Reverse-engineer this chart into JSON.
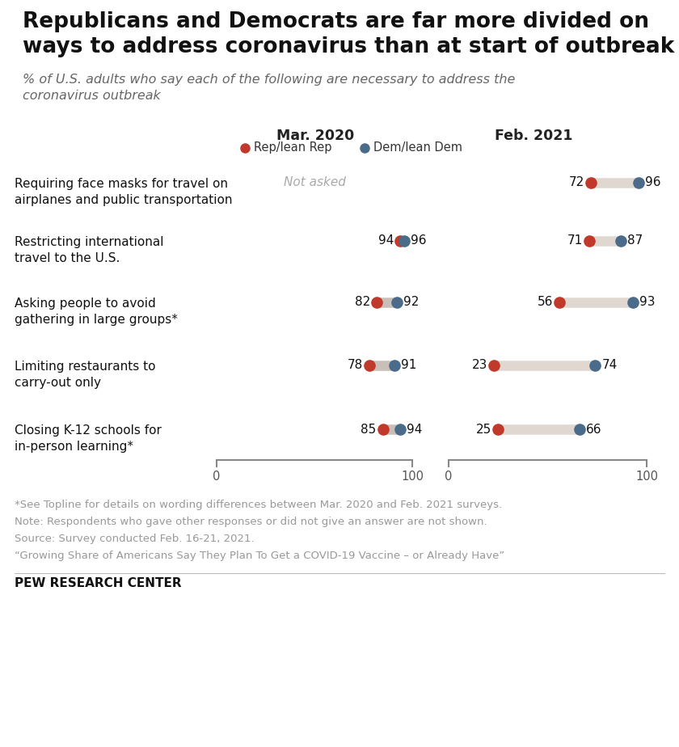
{
  "title": "Republicans and Democrats are far more divided on\nways to address coronavirus than at start of outbreak",
  "subtitle": "% of U.S. adults who say each of the following are necessary to address the\ncoronavirus outbreak",
  "categories": [
    "Requiring face masks for travel on\nairplanes and public transportation",
    "Restricting international\ntravel to the U.S.",
    "Asking people to avoid\ngathering in large groups*",
    "Limiting restaurants to\ncarry-out only",
    "Closing K-12 schools for\nin-person learning*"
  ],
  "mar2020": {
    "rep": [
      null,
      94,
      82,
      78,
      85
    ],
    "dem": [
      null,
      96,
      92,
      91,
      94
    ]
  },
  "feb2021": {
    "rep": [
      72,
      71,
      56,
      23,
      25
    ],
    "dem": [
      96,
      87,
      93,
      74,
      66
    ]
  },
  "not_asked_text": "Not asked",
  "col1_header": "Mar. 2020",
  "col2_header": "Feb. 2021",
  "legend_rep_label": "Rep/lean Rep",
  "legend_dem_label": "Dem/lean Dem",
  "rep_color": "#C0392B",
  "dem_color": "#4A6B8A",
  "connector_color_feb": "#E0D8D0",
  "connector_color_mar": "#C8C0B8",
  "footnote1": "*See Topline for details on wording differences between Mar. 2020 and Feb. 2021 surveys.",
  "footnote2": "Note: Respondents who gave other responses or did not give an answer are not shown.",
  "footnote3": "Source: Survey conducted Feb. 16-21, 2021.",
  "footnote4": "“Growing Share of Americans Say They Plan To Get a COVID-19 Vaccine – or Already Have”",
  "source_label": "PEW RESEARCH CENTER",
  "background_color": "#FFFFFF",
  "footnote_color": "#999999"
}
